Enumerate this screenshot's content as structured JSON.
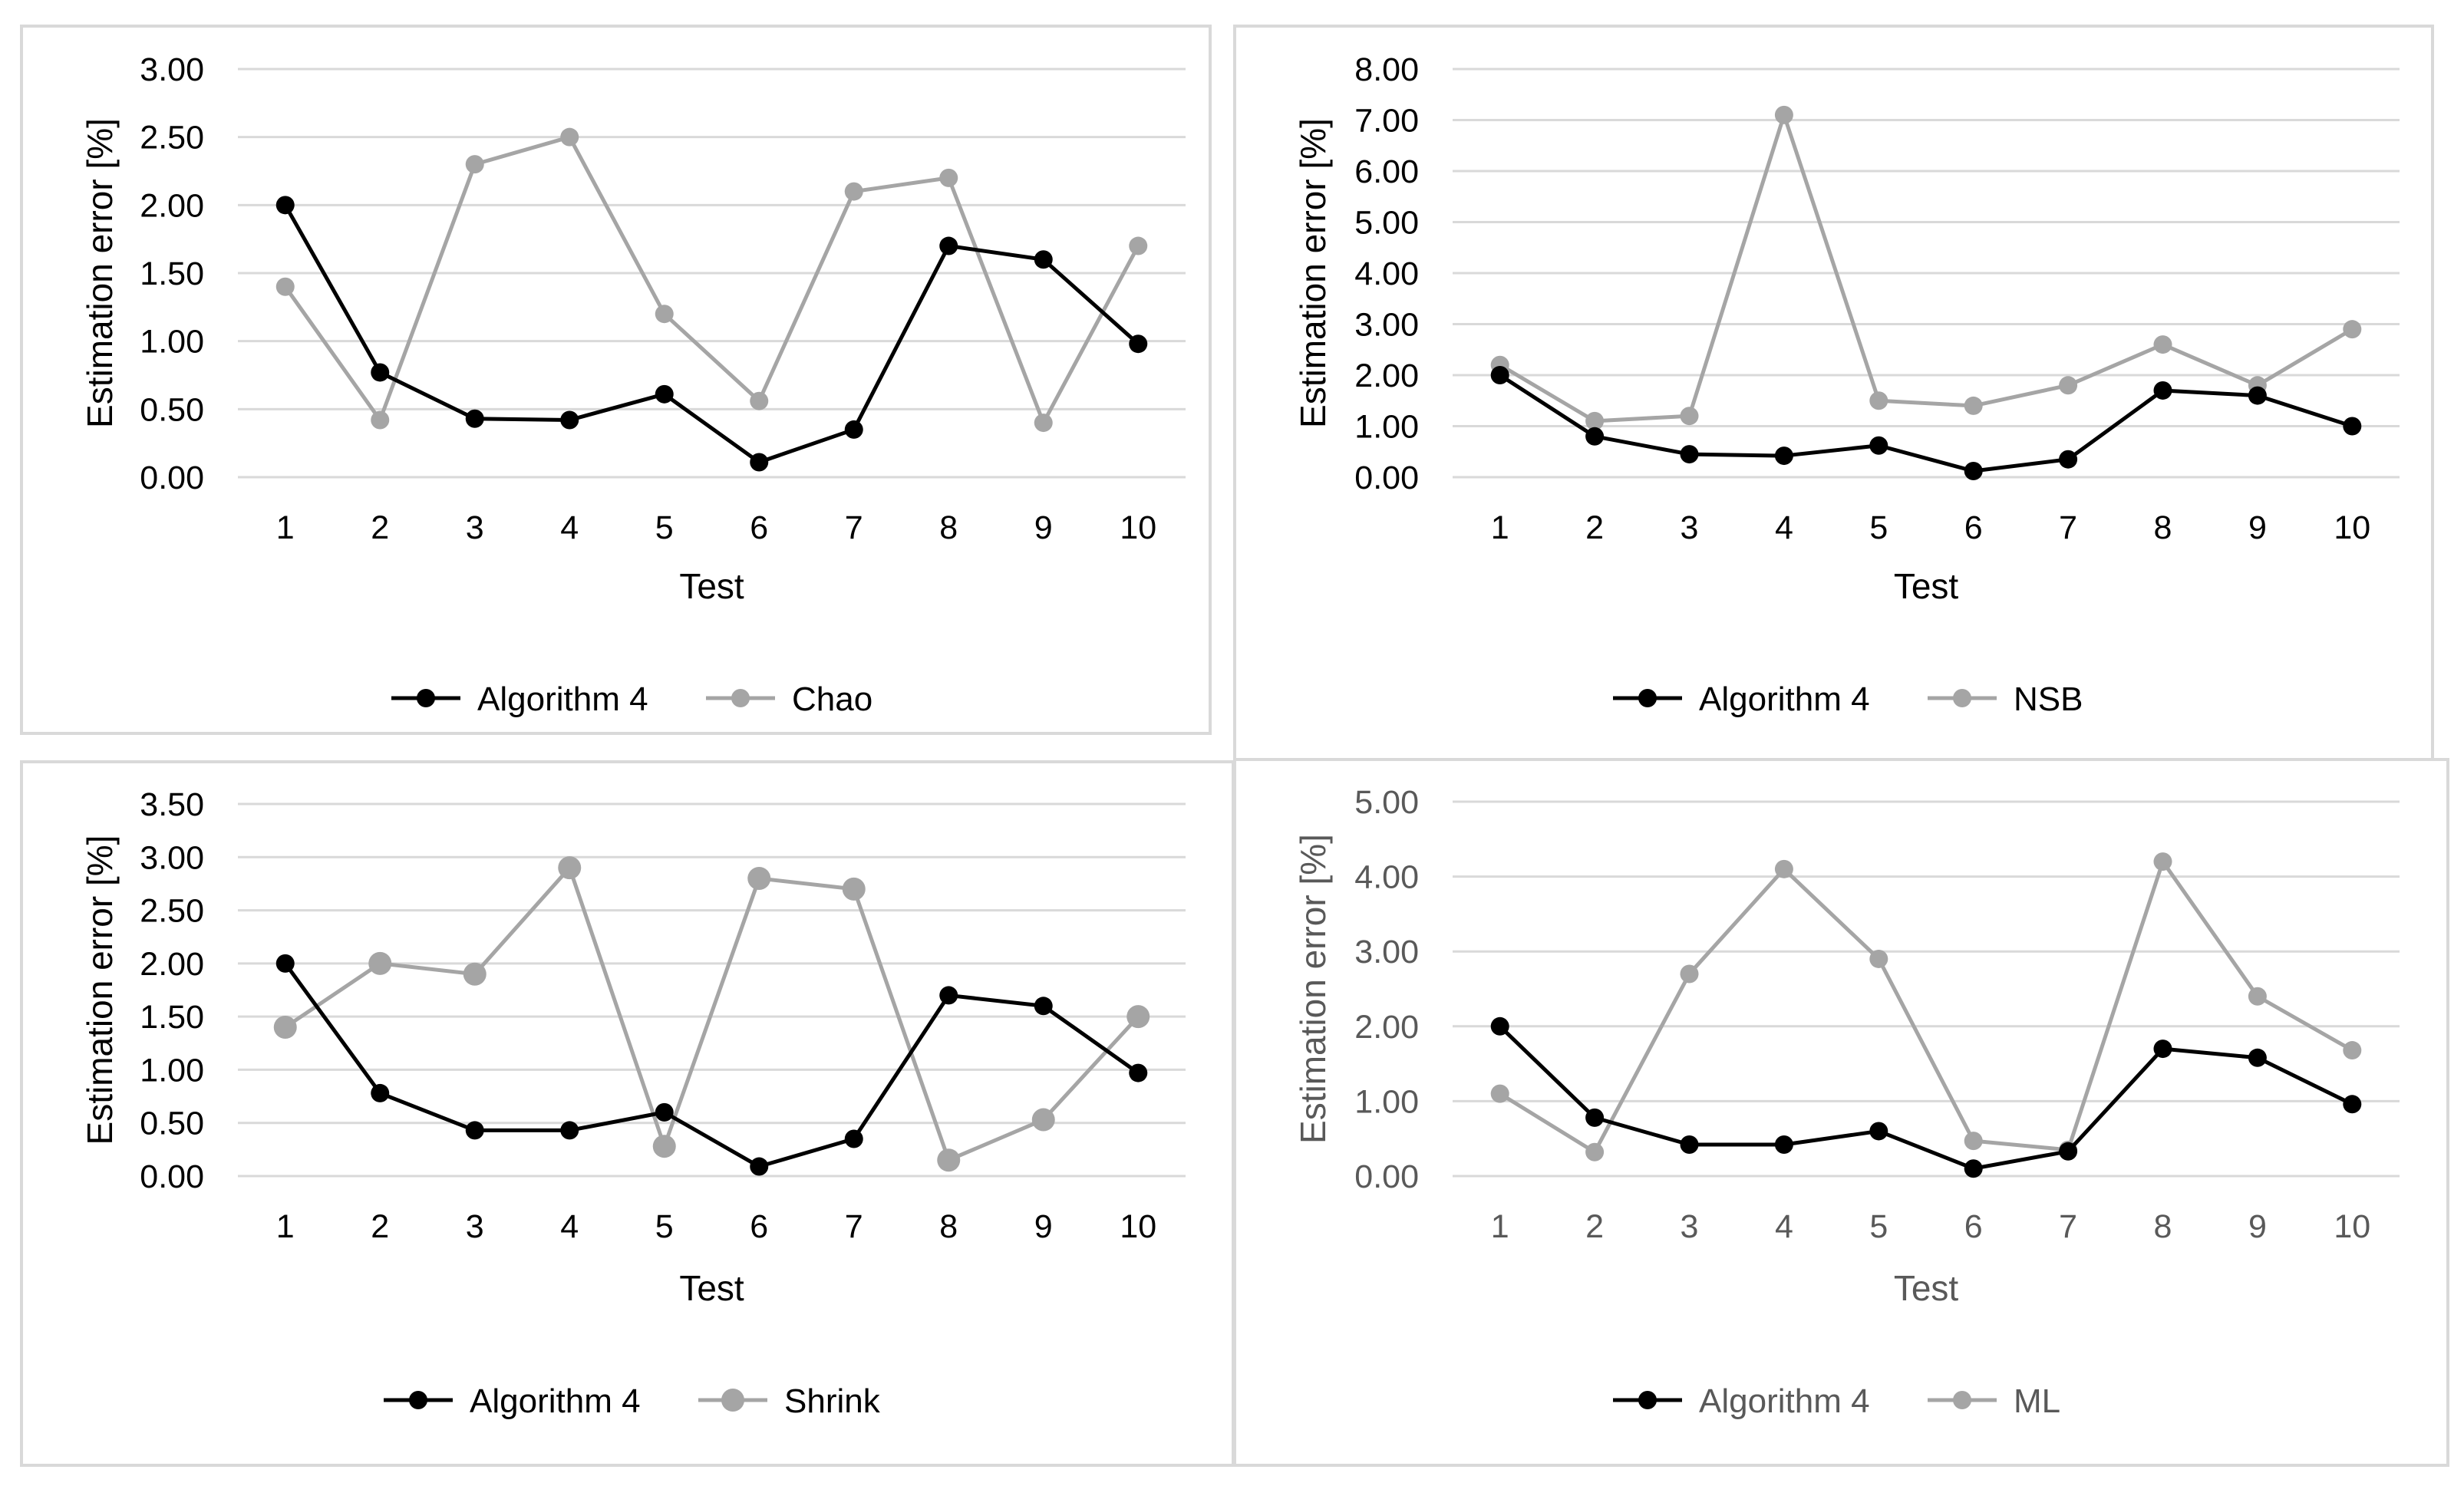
{
  "chart_data": [
    {
      "type": "line",
      "title": "",
      "xlabel": "Test",
      "ylabel": "Estimation error [%]",
      "categories": [
        "1",
        "2",
        "3",
        "4",
        "5",
        "6",
        "7",
        "8",
        "9",
        "10"
      ],
      "yticks": [
        "0.00",
        "0.50",
        "1.00",
        "1.50",
        "2.00",
        "2.50",
        "3.00"
      ],
      "ylim": [
        0,
        3.0
      ],
      "series": [
        {
          "name": "Algorithm 4",
          "color": "#000000",
          "values": [
            2.0,
            0.77,
            0.43,
            0.42,
            0.61,
            0.11,
            0.35,
            1.7,
            1.6,
            0.98
          ]
        },
        {
          "name": "Chao",
          "color": "#a5a5a5",
          "values": [
            1.4,
            0.42,
            2.3,
            2.5,
            1.2,
            0.56,
            2.1,
            2.2,
            0.4,
            1.7
          ]
        }
      ]
    },
    {
      "type": "line",
      "title": "",
      "xlabel": "Test",
      "ylabel": "Estimation error [%]",
      "categories": [
        "1",
        "2",
        "3",
        "4",
        "5",
        "6",
        "7",
        "8",
        "9",
        "10"
      ],
      "yticks": [
        "0.00",
        "1.00",
        "2.00",
        "3.00",
        "4.00",
        "5.00",
        "6.00",
        "7.00",
        "8.00"
      ],
      "ylim": [
        0,
        8.0
      ],
      "series": [
        {
          "name": "Algorithm 4",
          "color": "#000000",
          "values": [
            2.0,
            0.8,
            0.45,
            0.42,
            0.62,
            0.12,
            0.35,
            1.7,
            1.6,
            1.0
          ]
        },
        {
          "name": "NSB",
          "color": "#a5a5a5",
          "values": [
            2.2,
            1.1,
            1.2,
            7.1,
            1.5,
            1.4,
            1.8,
            2.6,
            1.8,
            2.9
          ]
        }
      ]
    },
    {
      "type": "line",
      "title": "",
      "xlabel": "Test",
      "ylabel": "Estimation error [%]",
      "categories": [
        "1",
        "2",
        "3",
        "4",
        "5",
        "6",
        "7",
        "8",
        "9",
        "10"
      ],
      "yticks": [
        "0.00",
        "0.50",
        "1.00",
        "1.50",
        "2.00",
        "2.50",
        "3.00",
        "3.50"
      ],
      "ylim": [
        0,
        3.5
      ],
      "series": [
        {
          "name": "Algorithm 4",
          "color": "#000000",
          "values": [
            2.0,
            0.78,
            0.43,
            0.43,
            0.6,
            0.09,
            0.35,
            1.7,
            1.6,
            0.97
          ]
        },
        {
          "name": "Shrink",
          "color": "#a5a5a5",
          "values": [
            1.4,
            2.0,
            1.9,
            2.9,
            0.28,
            2.8,
            2.7,
            0.15,
            0.53,
            1.5
          ]
        }
      ]
    },
    {
      "type": "line",
      "title": "",
      "xlabel": "Test",
      "ylabel": "Estimation error [%]",
      "categories": [
        "1",
        "2",
        "3",
        "4",
        "5",
        "6",
        "7",
        "8",
        "9",
        "10"
      ],
      "yticks": [
        "0.00",
        "1.00",
        "2.00",
        "3.00",
        "4.00",
        "5.00"
      ],
      "ylim": [
        0,
        5.0
      ],
      "series": [
        {
          "name": "Algorithm 4",
          "color": "#000000",
          "values": [
            2.0,
            0.78,
            0.42,
            0.42,
            0.6,
            0.1,
            0.33,
            1.7,
            1.58,
            0.96
          ]
        },
        {
          "name": "ML",
          "color": "#a5a5a5",
          "values": [
            1.1,
            0.32,
            2.7,
            4.1,
            2.9,
            0.47,
            0.35,
            4.2,
            2.4,
            1.68
          ]
        }
      ]
    }
  ]
}
